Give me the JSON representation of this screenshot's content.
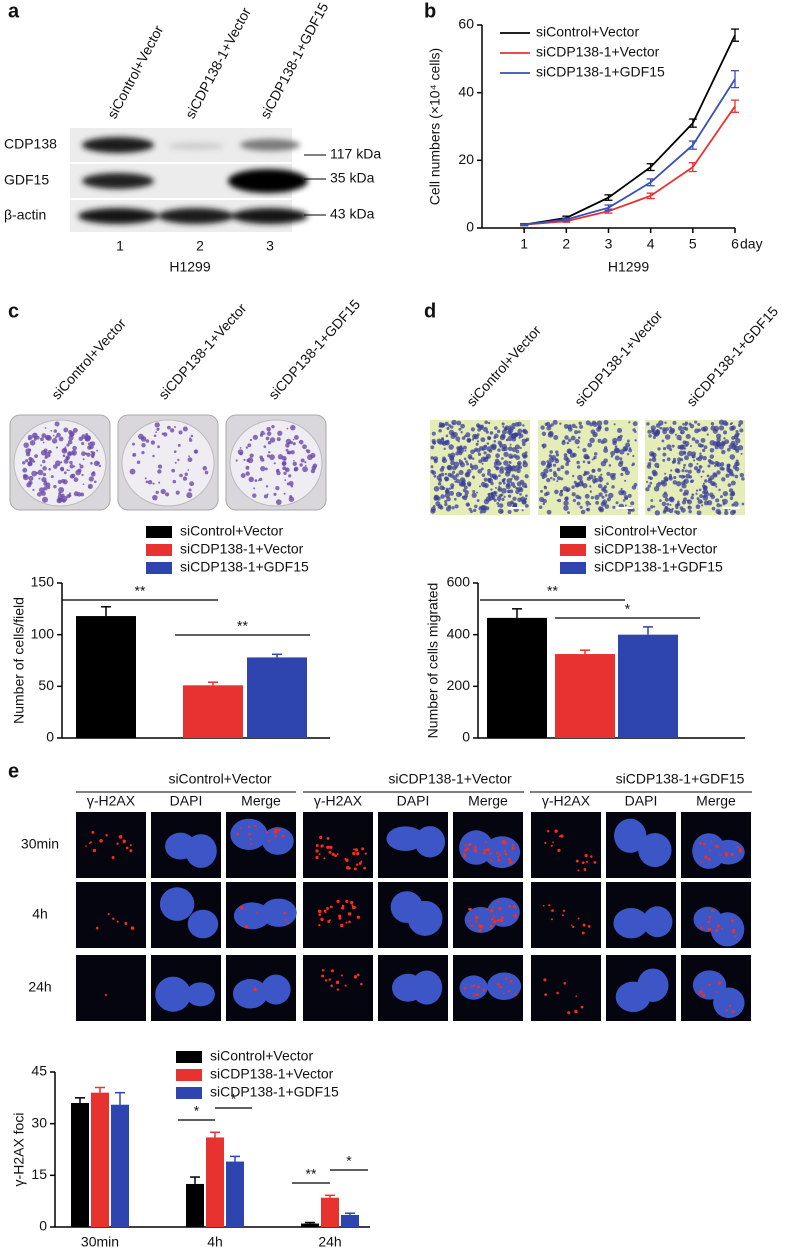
{
  "panel_labels": [
    "a",
    "b",
    "c",
    "d",
    "e"
  ],
  "blot": {
    "lanes": [
      "siControl+Vector",
      "siCDP138-1+Vector",
      "siCDP138-1+GDF15"
    ],
    "bands": [
      "CDP138",
      "GDF15",
      "β-actin"
    ],
    "sizes": [
      "117 kDa",
      "35  kDa",
      "43  kDa"
    ],
    "lane_numbers": [
      "1",
      "2",
      "3"
    ],
    "cell_line": "H1299"
  },
  "colony": {
    "labels": [
      "siControl+Vector",
      "siCDP138-1+Vector",
      "siCDP138-1+GDF15"
    ]
  },
  "migration": {
    "labels": [
      "siControl+Vector",
      "siCDP138-1+Vector",
      "siCDP138-1+GDF15"
    ]
  },
  "foci_images": {
    "groups": [
      "siControl+Vector",
      "siCDP138-1+Vector",
      "siCDP138-1+GDF15"
    ],
    "channels": [
      "γ-H2AX",
      "DAPI",
      "Merge"
    ],
    "times": [
      "30min",
      "4h",
      "24h"
    ]
  },
  "chart_data": [
    {
      "type": "line",
      "x_label": "H1299",
      "x_unit": "day",
      "y_label": "Cell numbers (×10⁴ cells)",
      "x": [
        1,
        2,
        3,
        4,
        5,
        6
      ],
      "xlim": [
        0,
        6
      ],
      "xticks": [
        1,
        2,
        3,
        4,
        5,
        6
      ],
      "ylim": [
        0,
        60
      ],
      "yticks": [
        0,
        20,
        40,
        60
      ],
      "series": [
        {
          "name": "siControl+Vector",
          "color": "#000000",
          "values": [
            1,
            3,
            9,
            18,
            31,
            57
          ],
          "errors": [
            0.3,
            0.5,
            0.8,
            1,
            1.2,
            1.8
          ]
        },
        {
          "name": "siCDP138-1+Vector",
          "color": "#e8322f",
          "values": [
            1,
            2,
            5,
            9.5,
            18,
            36
          ],
          "errors": [
            0.2,
            0.3,
            0.6,
            0.8,
            1.3,
            1.8
          ]
        },
        {
          "name": "siCDP138-1+GDF15",
          "color": "#3a4fb5",
          "values": [
            1,
            2.5,
            6,
            13.5,
            24.5,
            44
          ],
          "errors": [
            0.2,
            0.4,
            0.8,
            1,
            1.2,
            2.5
          ]
        }
      ]
    },
    {
      "type": "bar",
      "y_label": "Number of cells/field",
      "categories": [
        null
      ],
      "ylim": [
        0,
        150
      ],
      "yticks": [
        0,
        50,
        100,
        150
      ],
      "significance": [
        "**",
        "**"
      ],
      "series": [
        {
          "name": "siControl+Vector",
          "color": "#000000",
          "values": [
            118
          ],
          "errors": [
            9
          ]
        },
        {
          "name": "siCDP138-1+Vector",
          "color": "#e8322f",
          "values": [
            51
          ],
          "errors": [
            3
          ]
        },
        {
          "name": "siCDP138-1+GDF15",
          "color": "#2e45b0",
          "values": [
            78
          ],
          "errors": [
            3
          ]
        }
      ]
    },
    {
      "type": "bar",
      "y_label": "Number of cells migrated",
      "categories": [
        null
      ],
      "ylim": [
        0,
        600
      ],
      "yticks": [
        0,
        200,
        400,
        600
      ],
      "significance": [
        "**",
        "*"
      ],
      "series": [
        {
          "name": "siControl+Vector",
          "color": "#000000",
          "values": [
            465
          ],
          "errors": [
            35
          ]
        },
        {
          "name": "siCDP138-1+Vector",
          "color": "#e8322f",
          "values": [
            325
          ],
          "errors": [
            15
          ]
        },
        {
          "name": "siCDP138-1+GDF15",
          "color": "#2e45b0",
          "values": [
            400
          ],
          "errors": [
            30
          ]
        }
      ]
    },
    {
      "type": "bar",
      "y_label": "γ-H2AX  foci",
      "categories": [
        "30min",
        "4h",
        "24h"
      ],
      "ylim": [
        0,
        45
      ],
      "yticks": [
        0,
        15,
        30,
        45
      ],
      "significance": [
        "*",
        "*",
        "**",
        "*"
      ],
      "series": [
        {
          "name": "siControl+Vector",
          "color": "#000000",
          "values": [
            36,
            12.5,
            1
          ],
          "errors": [
            1.5,
            2,
            0.3
          ]
        },
        {
          "name": "siCDP138-1+Vector",
          "color": "#e8322f",
          "values": [
            39,
            26,
            8.5
          ],
          "errors": [
            1.5,
            1.5,
            0.7
          ]
        },
        {
          "name": "siCDP138-1+GDF15",
          "color": "#2e45b0",
          "values": [
            35.5,
            19,
            3.5
          ],
          "errors": [
            3.5,
            1.5,
            0.5
          ]
        }
      ]
    }
  ]
}
